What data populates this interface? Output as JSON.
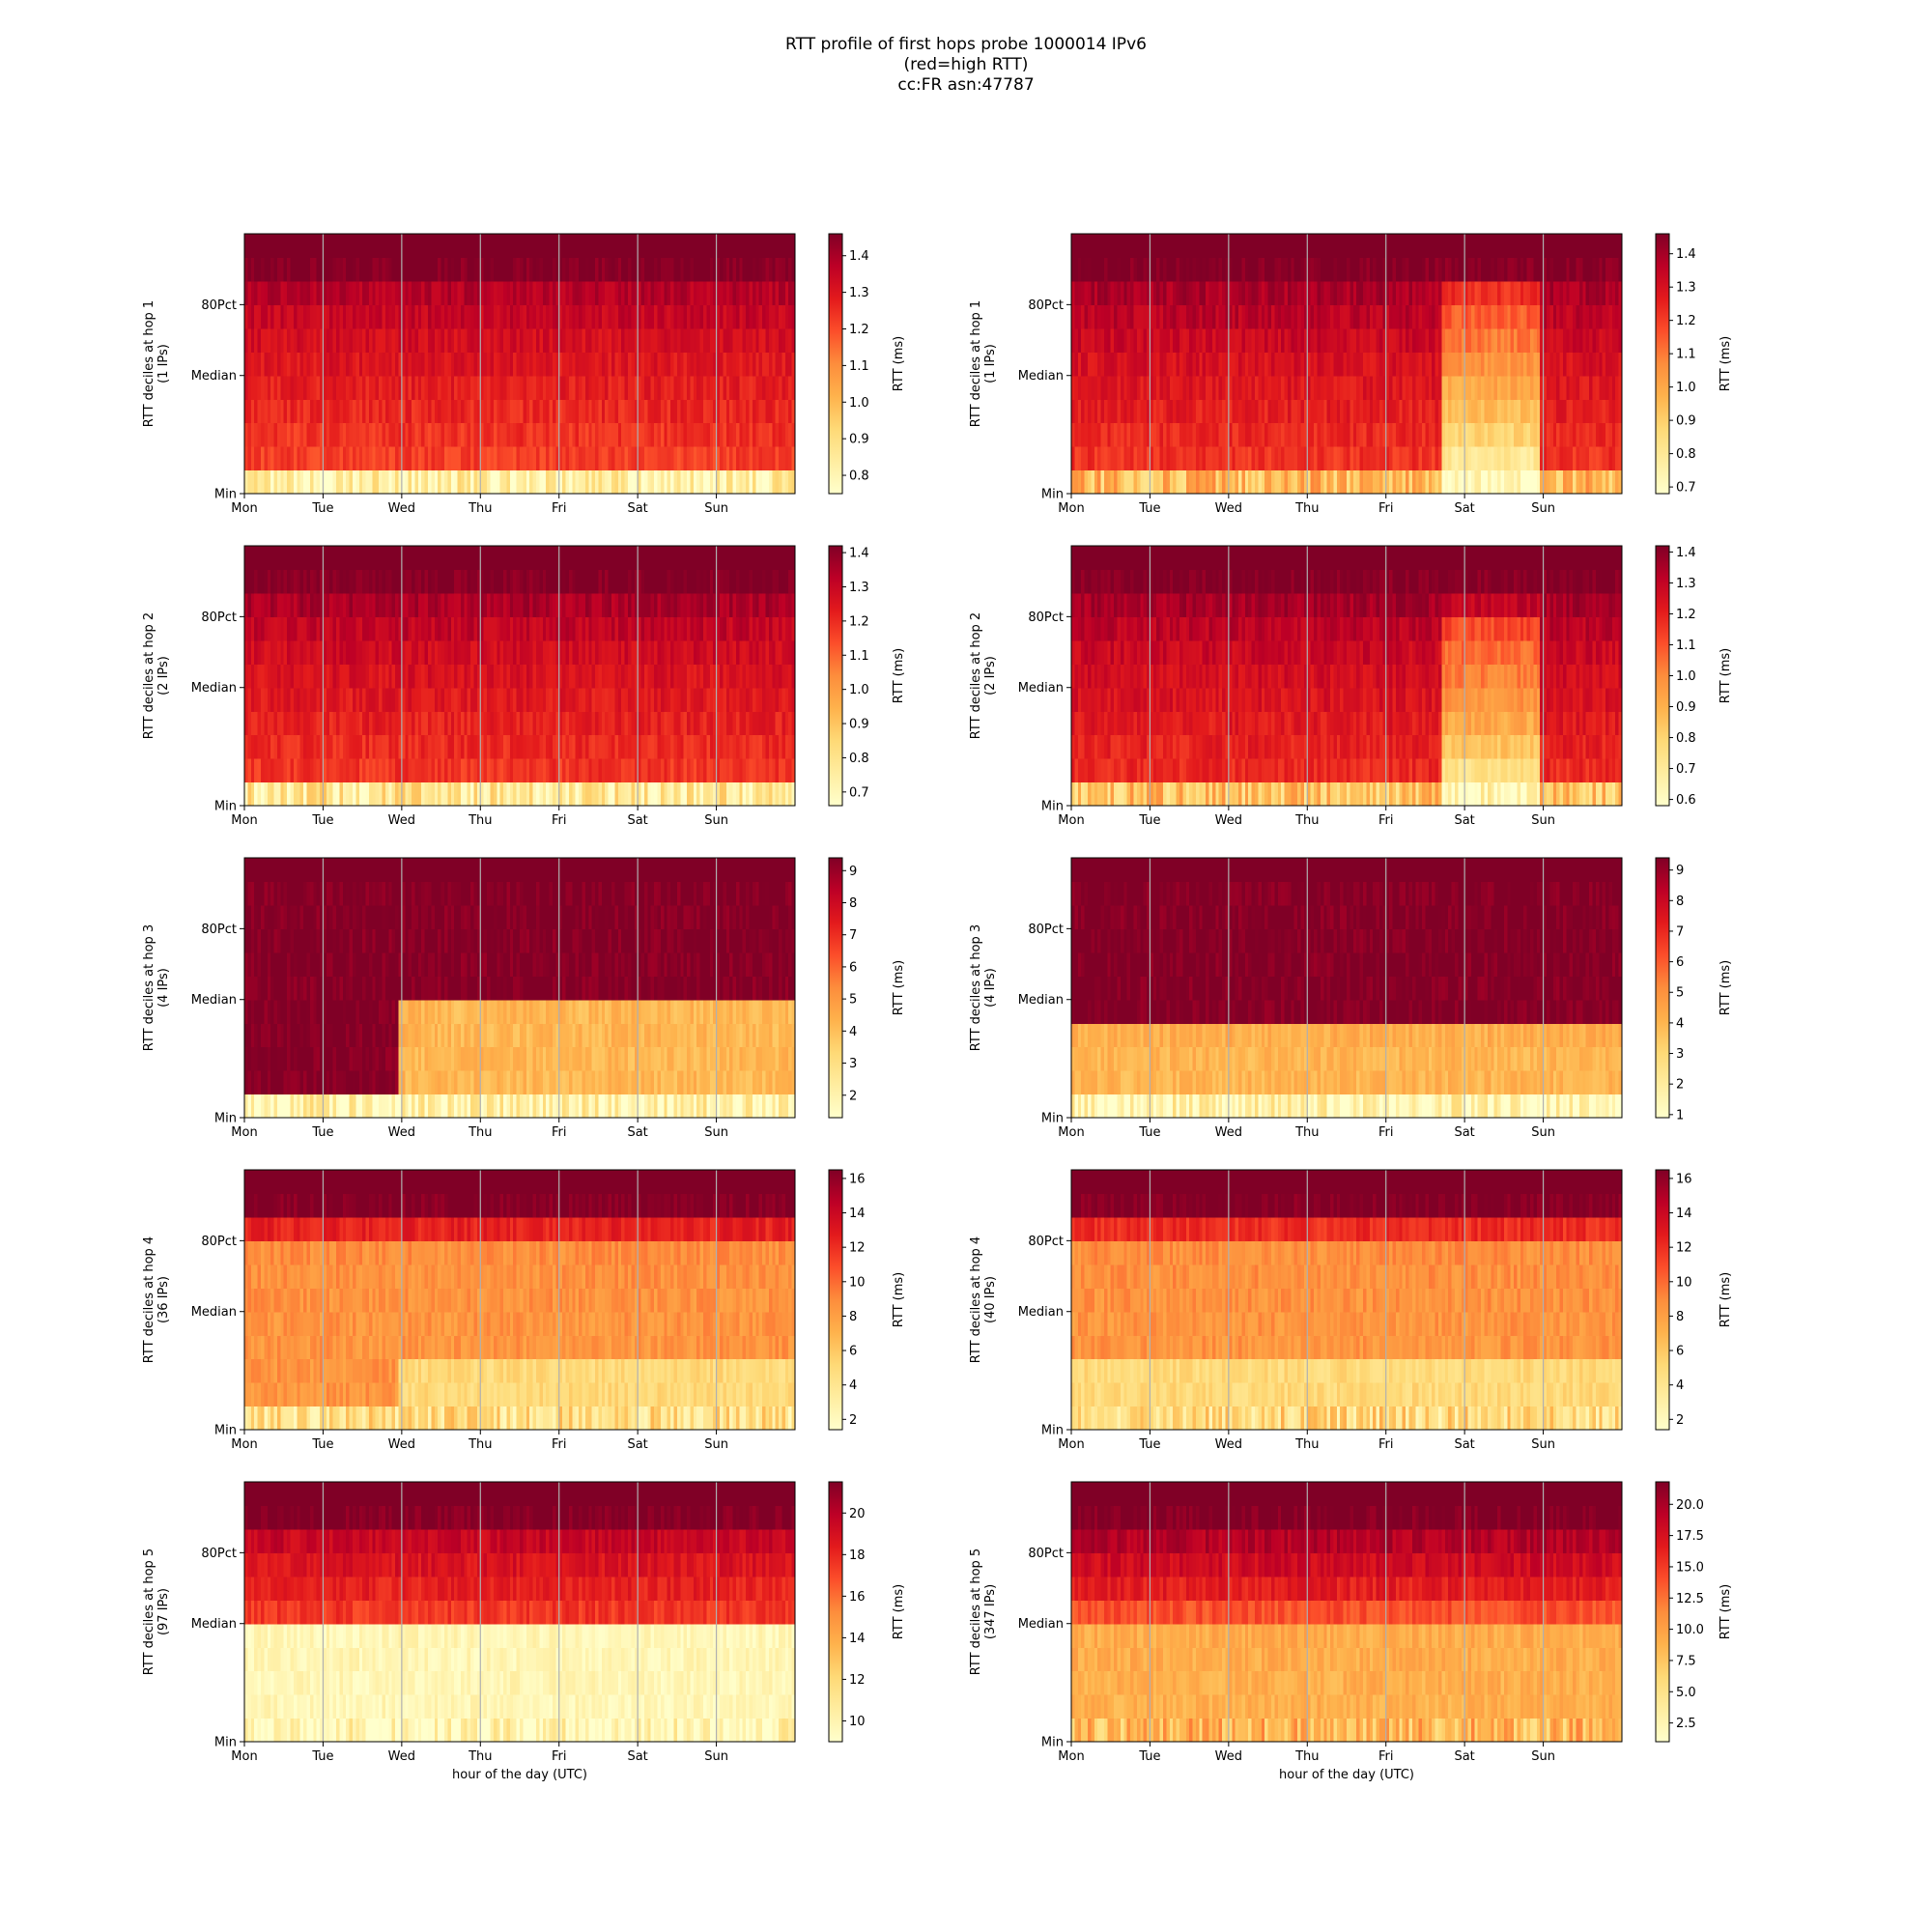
{
  "figure": {
    "title_lines": [
      "RTT profile of first hops probe 1000014 IPv6",
      "(red=high RTT)",
      "cc:FR asn:47787"
    ]
  },
  "colormap": [
    "#ffffcc",
    "#ffeda0",
    "#fed976",
    "#feb24c",
    "#fd8d3c",
    "#fc4e2a",
    "#e31a1c",
    "#bd0026",
    "#800026"
  ],
  "chart_data": [
    {
      "type": "heatmap",
      "panel": "hop1-left",
      "ylabel_line1": "RTT deciles at hop 1",
      "ylabel_line2": "(1 IPs)",
      "xlabel": "",
      "x_ticks": [
        "Mon",
        "Tue",
        "Wed",
        "Thu",
        "Fri",
        "Sat",
        "Sun"
      ],
      "y_ticks": [
        "Min",
        "Median",
        "80Pct"
      ],
      "colorbar_label": "RTT (ms)",
      "colorbar_ticks": [
        "0.8",
        "0.9",
        "1.0",
        "1.1",
        "1.2",
        "1.3",
        "1.4"
      ],
      "vmin": 0.75,
      "vmax": 1.46,
      "deciles_profile": [
        0.82,
        1.22,
        1.24,
        1.26,
        1.28,
        1.3,
        1.32,
        1.35,
        1.38,
        1.46
      ],
      "events": [],
      "seed": 11
    },
    {
      "type": "heatmap",
      "panel": "hop1-right",
      "ylabel_line1": "RTT deciles at hop 1",
      "ylabel_line2": "(1 IPs)",
      "xlabel": "",
      "x_ticks": [
        "Mon",
        "Tue",
        "Wed",
        "Thu",
        "Fri",
        "Sat",
        "Sun"
      ],
      "y_ticks": [
        "Min",
        "Median",
        "80Pct"
      ],
      "colorbar_label": "RTT (ms)",
      "colorbar_ticks": [
        "0.7",
        "0.8",
        "0.9",
        "1.0",
        "1.1",
        "1.2",
        "1.3",
        "1.4"
      ],
      "vmin": 0.68,
      "vmax": 1.46,
      "deciles_profile": [
        0.95,
        1.22,
        1.24,
        1.26,
        1.28,
        1.3,
        1.33,
        1.36,
        1.39,
        1.46
      ],
      "events": [
        {
          "day_start": 4.7,
          "day_end": 5.95,
          "profile": [
            0.7,
            0.8,
            0.88,
            0.95,
            1.0,
            1.05,
            1.1,
            1.15,
            1.22,
            1.46
          ]
        }
      ],
      "seed": 12
    },
    {
      "type": "heatmap",
      "panel": "hop2-left",
      "ylabel_line1": "RTT deciles at hop 2",
      "ylabel_line2": "(2 IPs)",
      "xlabel": "",
      "x_ticks": [
        "Mon",
        "Tue",
        "Wed",
        "Thu",
        "Fri",
        "Sat",
        "Sun"
      ],
      "y_ticks": [
        "Min",
        "Median",
        "80Pct"
      ],
      "colorbar_label": "RTT (ms)",
      "colorbar_ticks": [
        "0.7",
        "0.8",
        "0.9",
        "1.0",
        "1.1",
        "1.2",
        "1.3",
        "1.4"
      ],
      "vmin": 0.66,
      "vmax": 1.42,
      "deciles_profile": [
        0.78,
        1.18,
        1.2,
        1.22,
        1.24,
        1.26,
        1.28,
        1.31,
        1.35,
        1.42
      ],
      "events": [],
      "seed": 13
    },
    {
      "type": "heatmap",
      "panel": "hop2-right",
      "ylabel_line1": "RTT deciles at hop 2",
      "ylabel_line2": "(2 IPs)",
      "xlabel": "",
      "x_ticks": [
        "Mon",
        "Tue",
        "Wed",
        "Thu",
        "Fri",
        "Sat",
        "Sun"
      ],
      "y_ticks": [
        "Min",
        "Median",
        "80Pct"
      ],
      "colorbar_label": "RTT (ms)",
      "colorbar_ticks": [
        "0.6",
        "0.7",
        "0.8",
        "0.9",
        "1.0",
        "1.1",
        "1.2",
        "1.3",
        "1.4"
      ],
      "vmin": 0.58,
      "vmax": 1.42,
      "deciles_profile": [
        0.85,
        1.18,
        1.2,
        1.22,
        1.24,
        1.26,
        1.28,
        1.31,
        1.35,
        1.42
      ],
      "events": [
        {
          "day_start": 4.7,
          "day_end": 5.95,
          "profile": [
            0.62,
            0.75,
            0.85,
            0.92,
            0.98,
            1.02,
            1.06,
            1.12,
            1.3,
            1.42
          ]
        }
      ],
      "seed": 14
    },
    {
      "type": "heatmap",
      "panel": "hop3-left",
      "ylabel_line1": "RTT deciles at hop 3",
      "ylabel_line2": "(4 IPs)",
      "xlabel": "",
      "x_ticks": [
        "Mon",
        "Tue",
        "Wed",
        "Thu",
        "Fri",
        "Sat",
        "Sun"
      ],
      "y_ticks": [
        "Min",
        "Median",
        "80Pct"
      ],
      "colorbar_label": "RTT (ms)",
      "colorbar_ticks": [
        "2",
        "3",
        "4",
        "5",
        "6",
        "7",
        "8",
        "9"
      ],
      "vmin": 1.3,
      "vmax": 9.4,
      "deciles_profile": [
        2.0,
        4.2,
        4.2,
        4.2,
        4.2,
        9.4,
        9.4,
        9.4,
        9.4,
        9.4
      ],
      "events": [
        {
          "day_start": 0,
          "day_end": 1.95,
          "profile": [
            2.0,
            9.4,
            9.4,
            9.4,
            9.4,
            9.4,
            9.4,
            9.4,
            9.4,
            9.4
          ]
        }
      ],
      "seed": 15
    },
    {
      "type": "heatmap",
      "panel": "hop3-right",
      "ylabel_line1": "RTT deciles at hop 3",
      "ylabel_line2": "(4 IPs)",
      "xlabel": "",
      "x_ticks": [
        "Mon",
        "Tue",
        "Wed",
        "Thu",
        "Fri",
        "Sat",
        "Sun"
      ],
      "y_ticks": [
        "Min",
        "Median",
        "80Pct"
      ],
      "colorbar_label": "RTT (ms)",
      "colorbar_ticks": [
        "1",
        "2",
        "3",
        "4",
        "5",
        "6",
        "7",
        "8",
        "9"
      ],
      "vmin": 0.9,
      "vmax": 9.4,
      "deciles_profile": [
        1.5,
        4.0,
        4.0,
        4.2,
        9.4,
        9.4,
        9.4,
        9.4,
        9.4,
        9.4
      ],
      "events": [],
      "seed": 16
    },
    {
      "type": "heatmap",
      "panel": "hop4-left",
      "ylabel_line1": "RTT deciles at hop 4",
      "ylabel_line2": "(36 IPs)",
      "xlabel": "",
      "x_ticks": [
        "Mon",
        "Tue",
        "Wed",
        "Thu",
        "Fri",
        "Sat",
        "Sun"
      ],
      "y_ticks": [
        "Min",
        "Median",
        "80Pct"
      ],
      "colorbar_label": "RTT (ms)",
      "colorbar_ticks": [
        "2",
        "4",
        "6",
        "8",
        "10",
        "12",
        "14",
        "16"
      ],
      "vmin": 1.4,
      "vmax": 16.5,
      "deciles_profile": [
        4.5,
        5.0,
        5.0,
        8.5,
        8.5,
        8.6,
        8.7,
        8.8,
        12.5,
        16.5
      ],
      "events": [
        {
          "day_start": 0,
          "day_end": 1.95,
          "profile": [
            4.5,
            8.5,
            8.5,
            8.5,
            8.5,
            8.6,
            8.7,
            8.8,
            12.5,
            16.5
          ]
        }
      ],
      "seed": 17
    },
    {
      "type": "heatmap",
      "panel": "hop4-right",
      "ylabel_line1": "RTT deciles at hop 4",
      "ylabel_line2": "(40 IPs)",
      "xlabel": "",
      "x_ticks": [
        "Mon",
        "Tue",
        "Wed",
        "Thu",
        "Fri",
        "Sat",
        "Sun"
      ],
      "y_ticks": [
        "Min",
        "Median",
        "80Pct"
      ],
      "colorbar_label": "RTT (ms)",
      "colorbar_ticks": [
        "2",
        "4",
        "6",
        "8",
        "10",
        "12",
        "14",
        "16"
      ],
      "vmin": 1.4,
      "vmax": 16.5,
      "deciles_profile": [
        4.8,
        5.0,
        5.0,
        8.5,
        8.5,
        8.6,
        8.7,
        8.8,
        12.0,
        16.5
      ],
      "events": [],
      "seed": 18
    },
    {
      "type": "heatmap",
      "panel": "hop5-left",
      "ylabel_line1": "RTT deciles at hop 5",
      "ylabel_line2": "(97 IPs)",
      "xlabel": "hour of the day (UTC)",
      "x_ticks": [
        "Mon",
        "Tue",
        "Wed",
        "Thu",
        "Fri",
        "Sat",
        "Sun"
      ],
      "y_ticks": [
        "Min",
        "Median",
        "80Pct"
      ],
      "colorbar_label": "RTT (ms)",
      "colorbar_ticks": [
        "10",
        "12",
        "14",
        "16",
        "18",
        "20"
      ],
      "vmin": 9.0,
      "vmax": 21.5,
      "deciles_profile": [
        9.6,
        9.8,
        9.8,
        9.8,
        9.8,
        17.5,
        18.2,
        18.8,
        19.5,
        21.5
      ],
      "events": [],
      "seed": 19
    },
    {
      "type": "heatmap",
      "panel": "hop5-right",
      "ylabel_line1": "RTT deciles at hop 5",
      "ylabel_line2": "(347 IPs)",
      "xlabel": "hour of the day (UTC)",
      "x_ticks": [
        "Mon",
        "Tue",
        "Wed",
        "Thu",
        "Fri",
        "Sat",
        "Sun"
      ],
      "y_ticks": [
        "Min",
        "Median",
        "80Pct"
      ],
      "colorbar_label": "RTT (ms)",
      "colorbar_ticks": [
        "2.5",
        "5.0",
        "7.5",
        "10.0",
        "12.5",
        "15.0",
        "17.5",
        "20.0"
      ],
      "vmin": 1.0,
      "vmax": 21.8,
      "deciles_profile": [
        8.5,
        9.0,
        9.0,
        9.2,
        9.3,
        14.0,
        16.5,
        18.0,
        19.5,
        21.8
      ],
      "events": [],
      "seed": 20
    }
  ]
}
